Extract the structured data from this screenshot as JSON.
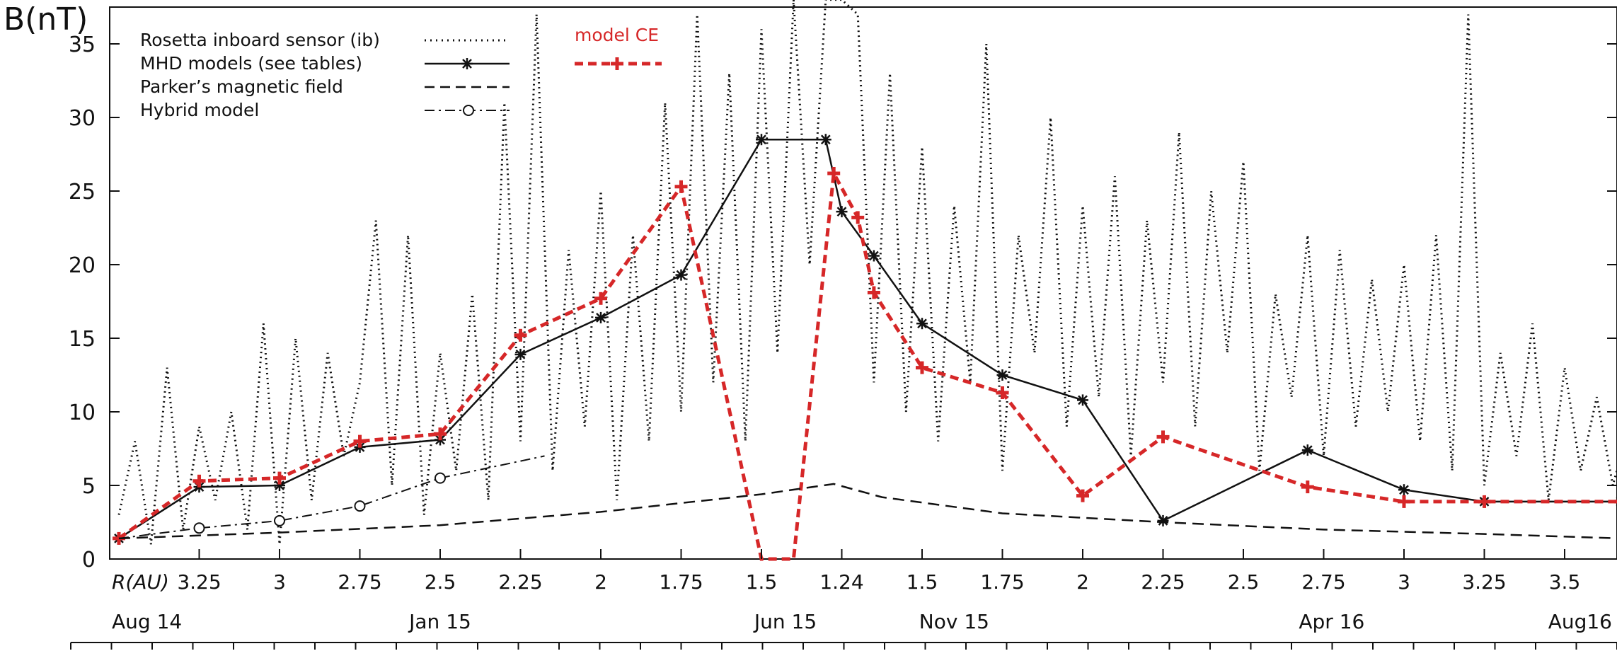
{
  "chart_data": {
    "type": "line",
    "ylabel": "B(nT)",
    "ylim": [
      0,
      37.5
    ],
    "yticks": [
      0,
      5,
      10,
      15,
      20,
      25,
      30,
      35
    ],
    "r_axis": {
      "label": "R(AU)",
      "ticks": [
        {
          "label": "3.25",
          "x": 1
        },
        {
          "label": "3",
          "x": 2
        },
        {
          "label": "2.75",
          "x": 3
        },
        {
          "label": "2.5",
          "x": 4
        },
        {
          "label": "2.25",
          "x": 5
        },
        {
          "label": "2",
          "x": 6
        },
        {
          "label": "1.75",
          "x": 7
        },
        {
          "label": "1.5",
          "x": 8
        },
        {
          "label": "1.24",
          "x": 9
        },
        {
          "label": "1.5",
          "x": 10
        },
        {
          "label": "1.75",
          "x": 11
        },
        {
          "label": "2",
          "x": 12
        },
        {
          "label": "2.25",
          "x": 13
        },
        {
          "label": "2.5",
          "x": 14
        },
        {
          "label": "2.75",
          "x": 15
        },
        {
          "label": "3",
          "x": 16
        },
        {
          "label": "3.25",
          "x": 17
        },
        {
          "label": "3.5",
          "x": 18
        }
      ]
    },
    "date_axis": {
      "ticks": [
        {
          "label": "Aug 14",
          "x": 0
        },
        {
          "label": "Jan 15",
          "x": 4
        },
        {
          "label": "Jun 15",
          "x": 8.3
        },
        {
          "label": "Nov 15",
          "x": 10.4
        },
        {
          "label": "Apr 16",
          "x": 15.1
        },
        {
          "label": "Aug16",
          "x": 18.7
        }
      ]
    },
    "legend": {
      "entries": [
        {
          "label": "Rosetta inboard sensor (ib)",
          "style": "dotted"
        },
        {
          "label": "MHD models (see tables)",
          "style": "solid-star"
        },
        {
          "label": "Parker’s magnetic field",
          "style": "dashed"
        },
        {
          "label": "Hybrid model",
          "style": "dashdot-circle"
        }
      ],
      "extra": {
        "label": "model CE",
        "color": "#d62728"
      }
    },
    "series": [
      {
        "name": "Rosetta inboard sensor (ib)",
        "style": "dotted",
        "color": "#111111",
        "x": [
          0,
          0.2,
          0.4,
          0.6,
          0.8,
          1.0,
          1.2,
          1.4,
          1.6,
          1.8,
          2.0,
          2.2,
          2.4,
          2.6,
          2.8,
          3.0,
          3.2,
          3.4,
          3.6,
          3.8,
          4.0,
          4.2,
          4.4,
          4.6,
          4.8,
          5.0,
          5.2,
          5.4,
          5.6,
          5.8,
          6.0,
          6.2,
          6.4,
          6.6,
          6.8,
          7.0,
          7.2,
          7.4,
          7.6,
          7.8,
          8.0,
          8.2,
          8.4,
          8.6,
          8.8,
          9.0,
          9.2,
          9.4,
          9.6,
          9.8,
          10.0,
          10.2,
          10.4,
          10.6,
          10.8,
          11.0,
          11.2,
          11.4,
          11.6,
          11.8,
          12.0,
          12.2,
          12.4,
          12.6,
          12.8,
          13.0,
          13.2,
          13.4,
          13.6,
          13.8,
          14.0,
          14.2,
          14.4,
          14.6,
          14.8,
          15.0,
          15.2,
          15.4,
          15.6,
          15.8,
          16.0,
          16.2,
          16.4,
          16.6,
          16.8,
          17.0,
          17.2,
          17.4,
          17.6,
          17.8,
          18.0,
          18.2,
          18.4,
          18.6,
          18.8
        ],
        "values": [
          3,
          8,
          1,
          13,
          2,
          9,
          4,
          10,
          2,
          16,
          1,
          15,
          4,
          14,
          7,
          12,
          23,
          5,
          22,
          3,
          14,
          6,
          18,
          4,
          31,
          8,
          37,
          6,
          21,
          9,
          25,
          4,
          22,
          8,
          31,
          10,
          37,
          12,
          33,
          8,
          36,
          14,
          38,
          20,
          38,
          38,
          37,
          12,
          33,
          10,
          28,
          8,
          24,
          12,
          35,
          6,
          22,
          14,
          30,
          9,
          24,
          11,
          26,
          7,
          23,
          12,
          29,
          9,
          25,
          14,
          27,
          6,
          18,
          11,
          22,
          7,
          21,
          9,
          19,
          10,
          20,
          8,
          22,
          6,
          37,
          5,
          14,
          7,
          16,
          4,
          13,
          6,
          11,
          5,
          9
        ]
      },
      {
        "name": "MHD models (see tables)",
        "style": "solid-star",
        "color": "#111111",
        "x": [
          0,
          1,
          2,
          3,
          4,
          5,
          6,
          7,
          8,
          8.8,
          9,
          9.4,
          10,
          11,
          12,
          13,
          14.8,
          16,
          17,
          18.7
        ],
        "values": [
          1.4,
          4.9,
          5.0,
          7.6,
          8.1,
          13.9,
          16.4,
          19.3,
          28.5,
          28.5,
          23.6,
          20.6,
          16.0,
          12.5,
          10.8,
          2.6,
          7.4,
          4.7,
          3.9,
          3.9
        ]
      },
      {
        "name": "model CE",
        "style": "dashed-plus",
        "color": "#d62728",
        "x": [
          0,
          1,
          2,
          3,
          4,
          5,
          6,
          7,
          8,
          8.4,
          8.9,
          9.2,
          9.4,
          10,
          11,
          12,
          13,
          14.8,
          16,
          17,
          18.7
        ],
        "values": [
          1.4,
          5.3,
          5.5,
          8.0,
          8.5,
          15.2,
          17.7,
          25.3,
          0,
          0,
          26.2,
          23.2,
          18.1,
          13.0,
          11.3,
          4.3,
          8.3,
          4.9,
          3.9,
          3.9,
          3.9
        ]
      },
      {
        "name": "Parker’s magnetic field",
        "style": "dashed",
        "color": "#111111",
        "x": [
          0,
          2,
          4,
          6,
          8,
          8.9,
          9.5,
          11,
          13,
          15,
          17,
          18.7
        ],
        "values": [
          1.4,
          1.8,
          2.3,
          3.2,
          4.4,
          5.1,
          4.2,
          3.1,
          2.5,
          2.0,
          1.7,
          1.4
        ]
      },
      {
        "name": "Hybrid model",
        "style": "dashdot-circle",
        "color": "#111111",
        "x": [
          0,
          1,
          2,
          3,
          4,
          5.3
        ],
        "values": [
          1.4,
          2.1,
          2.6,
          3.6,
          5.5,
          7.0
        ],
        "marker_x": [
          1,
          2,
          3,
          4
        ],
        "marker_values": [
          2.1,
          2.6,
          3.6,
          5.5
        ]
      }
    ]
  }
}
